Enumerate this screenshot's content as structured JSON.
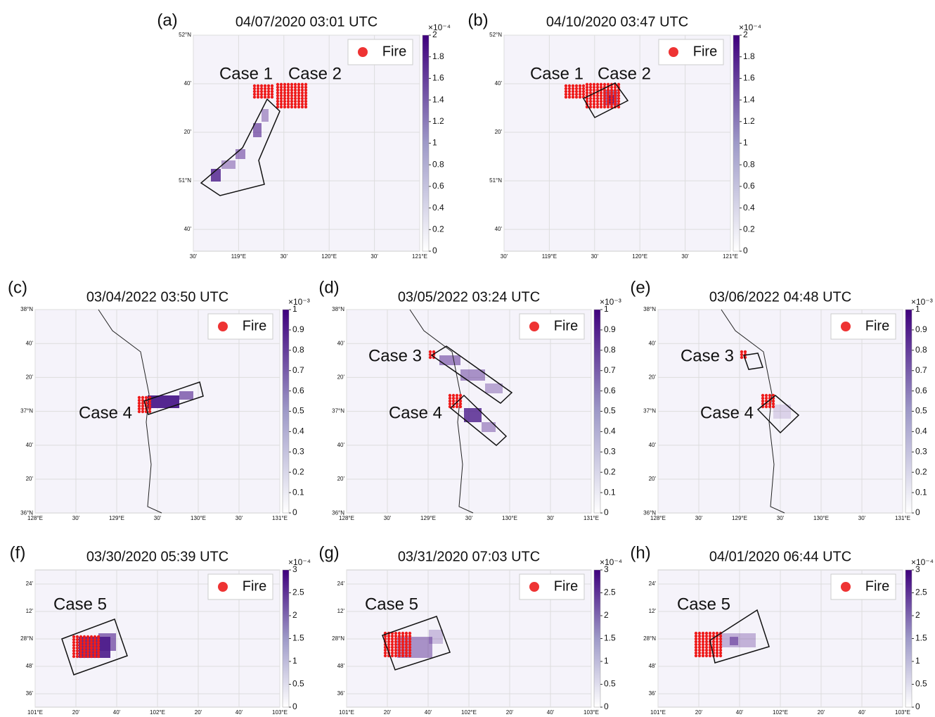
{
  "rows": [
    {
      "x_labels": [
        "30'",
        "119°E",
        "30'",
        "120°E",
        "30'",
        "121°E"
      ],
      "y_labels": [
        "52°N",
        "40'",
        "20'",
        "51°N",
        "40'"
      ],
      "colorbar": {
        "lim": [
          0,
          2
        ],
        "ticks": [
          0,
          0.2,
          0.4,
          0.6,
          0.8,
          1,
          1.2,
          1.4,
          1.6,
          1.8,
          2
        ],
        "exponent": "×10⁻⁴"
      },
      "panels": [
        {
          "label": "(a)",
          "title": "04/07/2020 03:01 UTC",
          "legend": "Fire",
          "cases": [
            "Case 1",
            "Case 2"
          ]
        },
        {
          "label": "(b)",
          "title": "04/10/2020 03:47 UTC",
          "legend": "Fire",
          "cases": [
            "Case 1",
            "Case 2"
          ]
        }
      ]
    },
    {
      "x_labels": [
        "128°E",
        "30'",
        "129°E",
        "30'",
        "130°E",
        "30'",
        "131°E"
      ],
      "y_labels": [
        "38°N",
        "40'",
        "20'",
        "37°N",
        "40'",
        "20'",
        "36°N"
      ],
      "colorbar": {
        "lim": [
          0,
          1
        ],
        "ticks": [
          0,
          0.1,
          0.2,
          0.3,
          0.4,
          0.5,
          0.6,
          0.7,
          0.8,
          0.9,
          1
        ],
        "exponent": "×10⁻³"
      },
      "panels": [
        {
          "label": "(c)",
          "title": "03/04/2022  03:50 UTC",
          "legend": "Fire",
          "cases": [
            "Case 4"
          ]
        },
        {
          "label": "(d)",
          "title": "03/05/2022  03:24 UTC",
          "legend": "Fire",
          "cases": [
            "Case 3",
            "Case 4"
          ]
        },
        {
          "label": "(e)",
          "title": "03/06/2022  04:48 UTC",
          "legend": "Fire",
          "cases": [
            "Case 3",
            "Case 4"
          ]
        }
      ]
    },
    {
      "x_labels": [
        "101°E",
        "20'",
        "40'",
        "102°E",
        "20'",
        "40'",
        "103°E"
      ],
      "y_labels": [
        "24'",
        "12'",
        "28°N",
        "48'",
        "36'"
      ],
      "colorbar": {
        "lim": [
          0,
          3
        ],
        "ticks": [
          0,
          0.5,
          1,
          1.5,
          2,
          2.5,
          3
        ],
        "exponent": "×10⁻⁴"
      },
      "panels": [
        {
          "label": "(f)",
          "title": "03/30/2020  05:39 UTC",
          "legend": "Fire",
          "cases": [
            "Case 5"
          ]
        },
        {
          "label": "(g)",
          "title": "03/31/2020  07:03 UTC",
          "legend": "Fire",
          "cases": [
            "Case 5"
          ]
        },
        {
          "label": "(h)",
          "title": "04/01/2020  06:44 UTC",
          "legend": "Fire",
          "cases": [
            "Case 5"
          ]
        }
      ]
    }
  ]
}
